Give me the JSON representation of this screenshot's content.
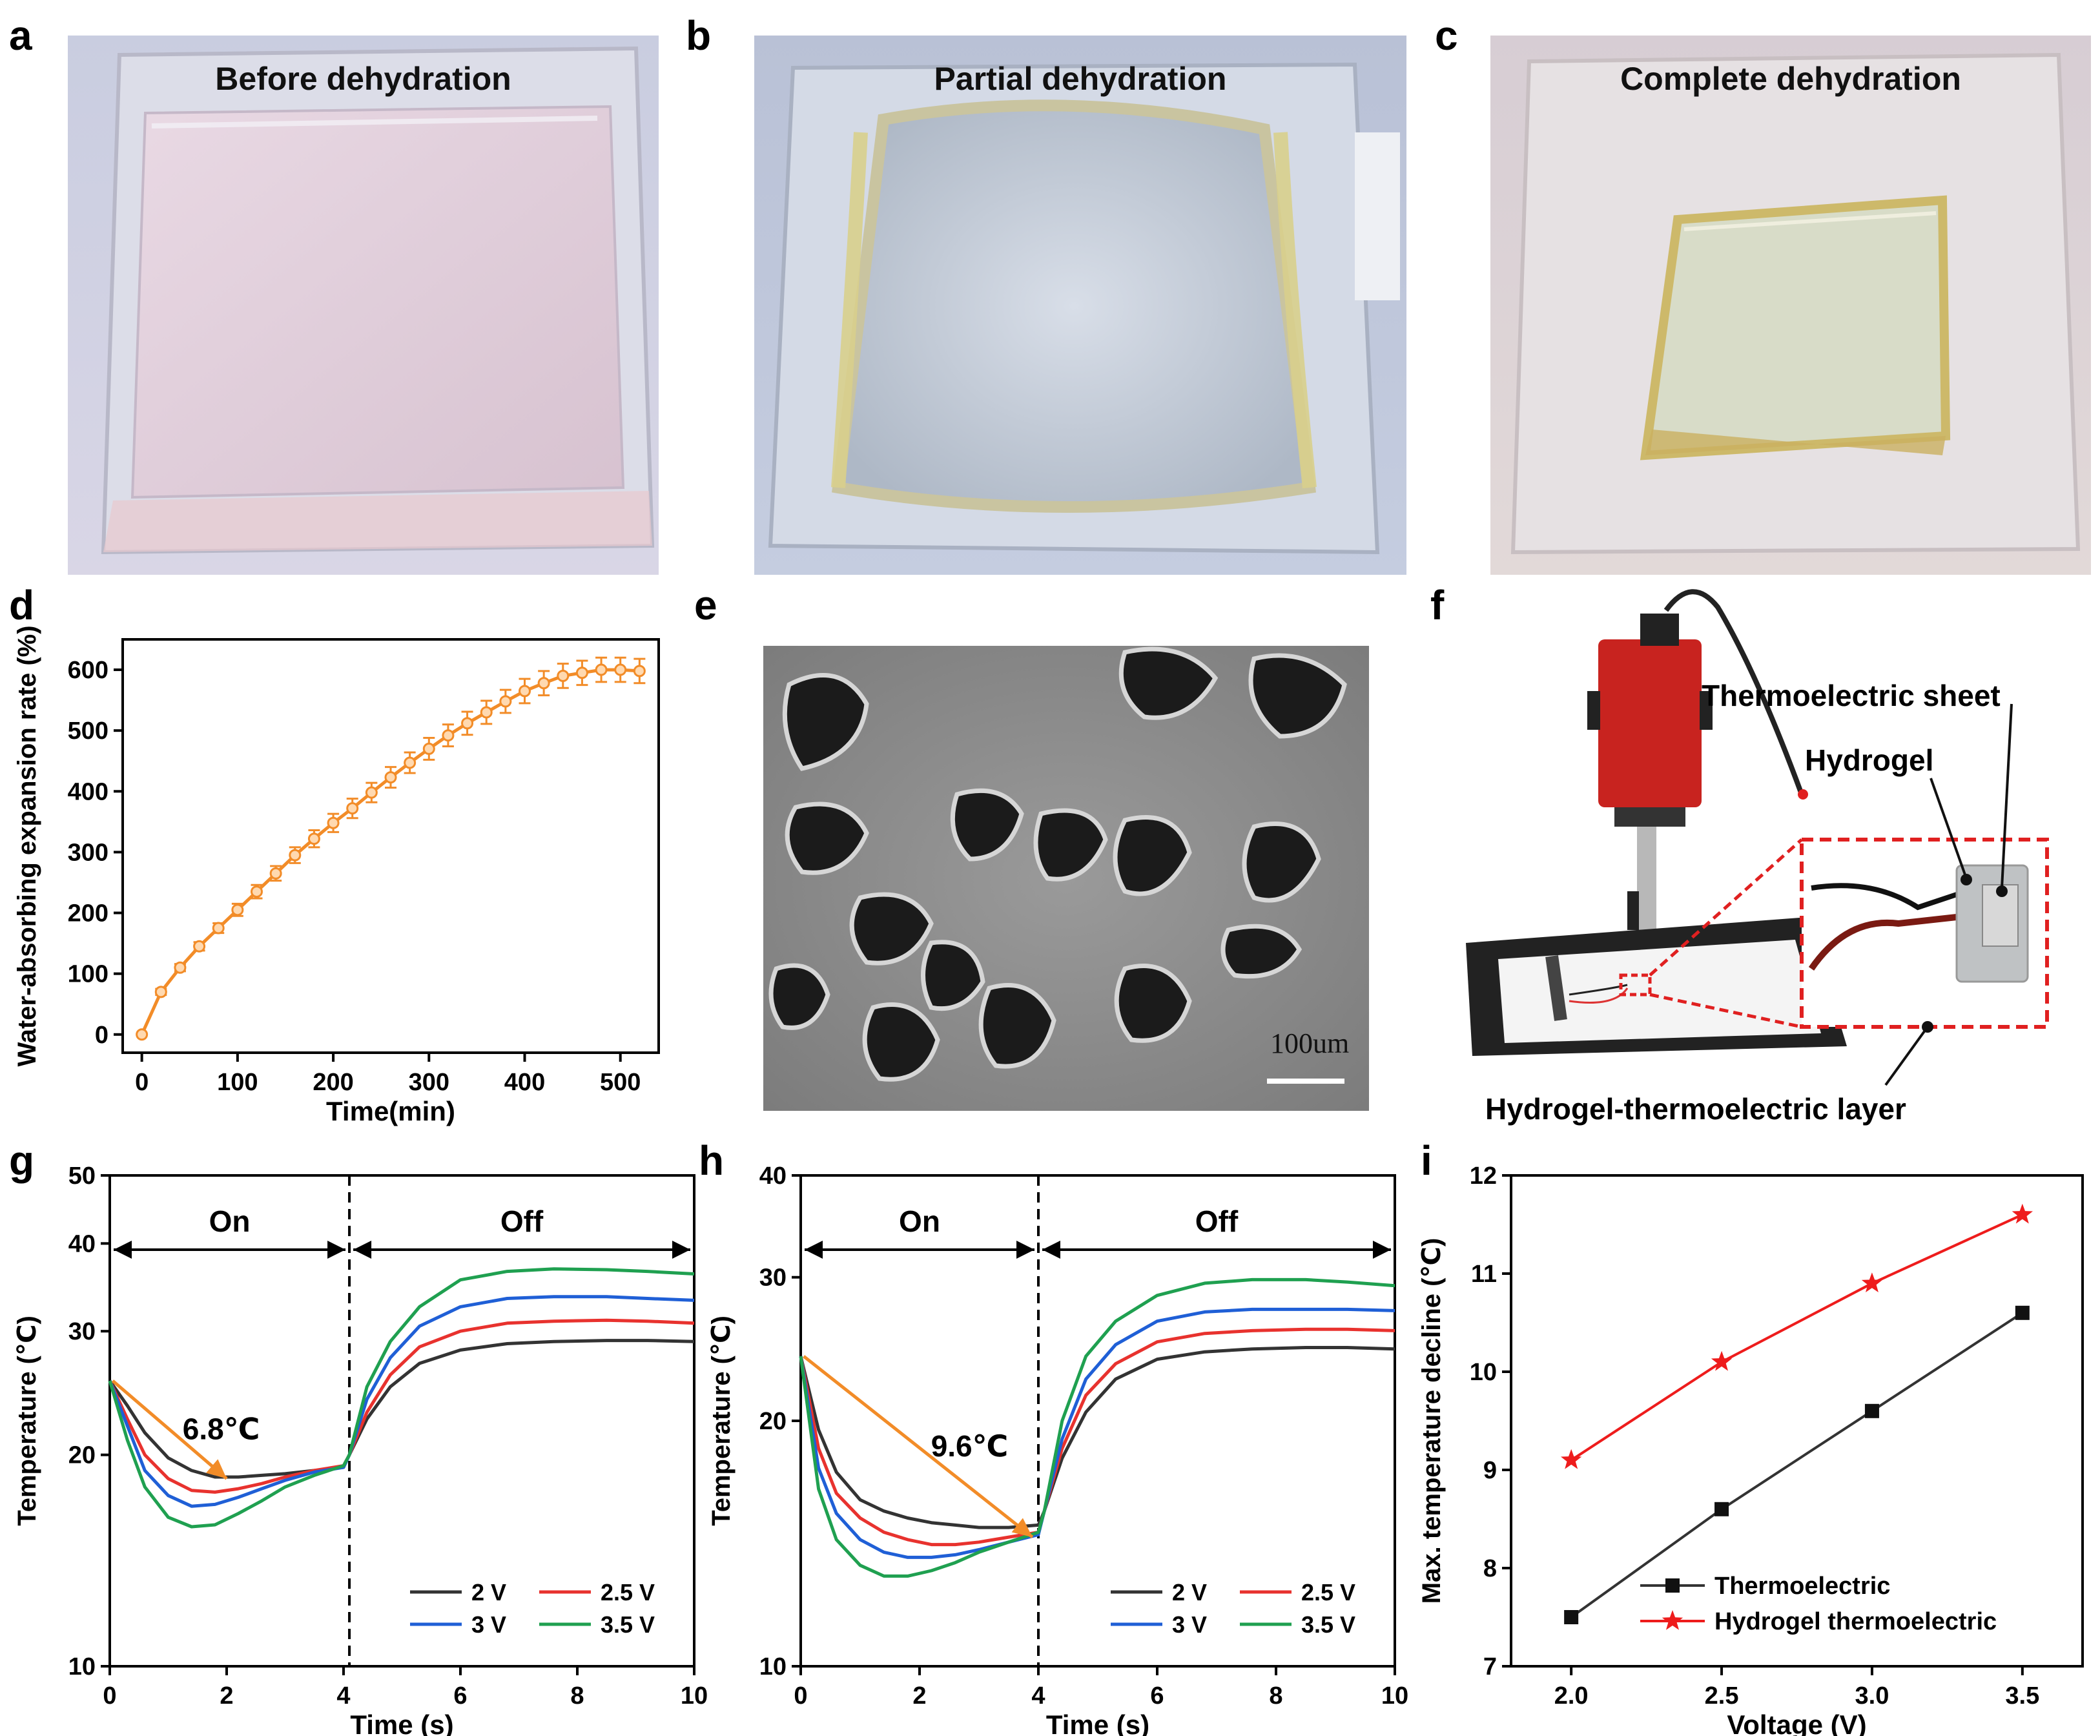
{
  "panels": {
    "a": {
      "letter": "a",
      "title": "Before dehydration"
    },
    "b": {
      "letter": "b",
      "title": "Partial dehydration"
    },
    "c": {
      "letter": "c",
      "title": "Complete dehydration"
    },
    "d": {
      "letter": "d"
    },
    "e": {
      "letter": "e",
      "scale_bar": "100um"
    },
    "f": {
      "letter": "f",
      "labels": {
        "thermoelectric_sheet": "Thermoelectric sheet",
        "hydrogel": "Hydrogel",
        "layer": "Hydrogel-thermoelectric layer"
      }
    },
    "g": {
      "letter": "g"
    },
    "h": {
      "letter": "h"
    },
    "i": {
      "letter": "i"
    }
  },
  "colors": {
    "orange": "#f28c28",
    "black": "#333333",
    "red": "#e8322e",
    "blue": "#1f5fd6",
    "green": "#1fa050",
    "red_star": "#ee1c1c"
  },
  "chart_data": [
    {
      "id": "d",
      "type": "line",
      "xlabel": "Time(min)",
      "ylabel": "Water-absorbing expansion rate (%)",
      "xlim": [
        -20,
        540
      ],
      "ylim": [
        -30,
        650
      ],
      "xticks": [
        0,
        100,
        200,
        300,
        400,
        500
      ],
      "yticks": [
        0,
        100,
        200,
        300,
        400,
        500,
        600
      ],
      "series": [
        {
          "color": "#f28c28",
          "x": [
            0,
            20,
            40,
            60,
            80,
            100,
            120,
            140,
            160,
            180,
            200,
            220,
            240,
            260,
            280,
            300,
            320,
            340,
            360,
            380,
            400,
            420,
            440,
            460,
            480,
            500,
            520
          ],
          "y": [
            0,
            70,
            110,
            145,
            175,
            205,
            235,
            265,
            295,
            322,
            348,
            372,
            398,
            423,
            447,
            470,
            492,
            512,
            530,
            548,
            565,
            578,
            590,
            595,
            600,
            600,
            598
          ],
          "err": [
            0,
            5,
            6,
            7,
            8,
            10,
            11,
            12,
            13,
            14,
            15,
            16,
            16,
            17,
            17,
            18,
            18,
            19,
            19,
            19,
            20,
            20,
            20,
            20,
            20,
            20,
            20
          ]
        }
      ]
    },
    {
      "id": "g",
      "type": "line",
      "xlabel": "Time (s)",
      "ylabel": "Temperature (℃)",
      "yscale": "log",
      "xlim": [
        0,
        10
      ],
      "ylim": [
        10,
        50
      ],
      "xticks": [
        0,
        2,
        4,
        6,
        8,
        10
      ],
      "yticks": [
        10,
        20,
        30,
        40,
        50
      ],
      "annotations": {
        "on": "On",
        "off": "Off",
        "delta": "6.8℃",
        "switch_x": 4.1,
        "arrow_from": [
          0.05,
          25.5
        ],
        "arrow_to": [
          2.0,
          18.5
        ]
      },
      "legend": [
        "2 V",
        "2.5 V",
        "3 V",
        "3.5 V"
      ],
      "series": [
        {
          "name": "2 V",
          "color": "#333333",
          "x": [
            0,
            0.3,
            0.6,
            1,
            1.4,
            1.8,
            2.2,
            2.6,
            3,
            3.5,
            4,
            4.1,
            4.4,
            4.8,
            5.3,
            6,
            6.8,
            7.6,
            8.5,
            9.2,
            10
          ],
          "y": [
            25.5,
            23.5,
            21.5,
            19.8,
            19.0,
            18.6,
            18.6,
            18.7,
            18.8,
            19.0,
            19.2,
            20.0,
            22.5,
            25,
            27,
            28.2,
            28.8,
            29,
            29.1,
            29.1,
            29.0
          ]
        },
        {
          "name": "2.5 V",
          "color": "#e8322e",
          "x": [
            0,
            0.3,
            0.6,
            1,
            1.4,
            1.8,
            2.2,
            2.6,
            3,
            3.5,
            4,
            4.1,
            4.4,
            4.8,
            5.3,
            6,
            6.8,
            7.6,
            8.5,
            9.2,
            10
          ],
          "y": [
            25.5,
            22.5,
            20.0,
            18.5,
            17.8,
            17.7,
            17.9,
            18.2,
            18.6,
            19.0,
            19.3,
            20.0,
            23.0,
            26,
            28.5,
            30,
            30.8,
            31,
            31.1,
            31.0,
            30.8
          ]
        },
        {
          "name": "3 V",
          "color": "#1f5fd6",
          "x": [
            0,
            0.3,
            0.6,
            1,
            1.4,
            1.8,
            2.2,
            2.6,
            3,
            3.5,
            4,
            4.1,
            4.4,
            4.8,
            5.3,
            6,
            6.8,
            7.6,
            8.5,
            9.2,
            10
          ],
          "y": [
            25.5,
            22.0,
            19.0,
            17.5,
            16.9,
            17.0,
            17.4,
            17.9,
            18.4,
            18.9,
            19.2,
            20.0,
            24,
            27.5,
            30.5,
            32.5,
            33.4,
            33.6,
            33.6,
            33.4,
            33.2
          ]
        },
        {
          "name": "3.5 V",
          "color": "#1fa050",
          "x": [
            0,
            0.3,
            0.6,
            1,
            1.4,
            1.8,
            2.2,
            2.6,
            3,
            3.5,
            4,
            4.1,
            4.4,
            4.8,
            5.3,
            6,
            6.8,
            7.6,
            8.5,
            9.2,
            10
          ],
          "y": [
            25.5,
            21.0,
            18.0,
            16.3,
            15.8,
            15.9,
            16.5,
            17.2,
            18.0,
            18.7,
            19.3,
            20.0,
            25,
            29,
            32.5,
            35.5,
            36.5,
            36.8,
            36.7,
            36.5,
            36.2
          ]
        }
      ]
    },
    {
      "id": "h",
      "type": "line",
      "xlabel": "Time (s)",
      "ylabel": "Temperature (℃)",
      "yscale": "log",
      "xlim": [
        0,
        10
      ],
      "ylim": [
        10,
        40
      ],
      "xticks": [
        0,
        2,
        4,
        6,
        8,
        10
      ],
      "yticks": [
        10,
        20,
        30,
        40
      ],
      "annotations": {
        "on": "On",
        "off": "Off",
        "delta": "9.6℃",
        "switch_x": 4.0,
        "arrow_from": [
          0.05,
          24.0
        ],
        "arrow_to": [
          3.9,
          14.4
        ]
      },
      "legend": [
        "2 V",
        "2.5 V",
        "3 V",
        "3.5 V"
      ],
      "series": [
        {
          "name": "2 V",
          "color": "#333333",
          "x": [
            0,
            0.3,
            0.6,
            1,
            1.4,
            1.8,
            2.2,
            2.6,
            3,
            3.5,
            4,
            4.1,
            4.4,
            4.8,
            5.3,
            6,
            6.8,
            7.6,
            8.5,
            9.2,
            10
          ],
          "y": [
            24,
            19.5,
            17.3,
            16.0,
            15.5,
            15.2,
            15.0,
            14.9,
            14.8,
            14.8,
            14.9,
            15.5,
            18,
            20.5,
            22.5,
            23.8,
            24.3,
            24.5,
            24.6,
            24.6,
            24.5
          ]
        },
        {
          "name": "2.5 V",
          "color": "#e8322e",
          "x": [
            0,
            0.3,
            0.6,
            1,
            1.4,
            1.8,
            2.2,
            2.6,
            3,
            3.5,
            4,
            4.1,
            4.4,
            4.8,
            5.3,
            6,
            6.8,
            7.6,
            8.5,
            9.2,
            10
          ],
          "y": [
            24,
            18.5,
            16.3,
            15.2,
            14.6,
            14.3,
            14.1,
            14.1,
            14.2,
            14.4,
            14.6,
            15.5,
            18.5,
            21.5,
            23.5,
            25,
            25.6,
            25.8,
            25.9,
            25.9,
            25.8
          ]
        },
        {
          "name": "3 V",
          "color": "#1f5fd6",
          "x": [
            0,
            0.3,
            0.6,
            1,
            1.4,
            1.8,
            2.2,
            2.6,
            3,
            3.5,
            4,
            4.1,
            4.4,
            4.8,
            5.3,
            6,
            6.8,
            7.6,
            8.5,
            9.2,
            10
          ],
          "y": [
            24,
            17.5,
            15.4,
            14.3,
            13.8,
            13.6,
            13.6,
            13.7,
            13.9,
            14.2,
            14.5,
            15.5,
            19,
            22.5,
            24.8,
            26.5,
            27.2,
            27.4,
            27.4,
            27.4,
            27.3
          ]
        },
        {
          "name": "3.5 V",
          "color": "#1fa050",
          "x": [
            0,
            0.3,
            0.6,
            1,
            1.4,
            1.8,
            2.2,
            2.6,
            3,
            3.5,
            4,
            4.1,
            4.4,
            4.8,
            5.3,
            6,
            6.8,
            7.6,
            8.5,
            9.2,
            10
          ],
          "y": [
            24,
            16.5,
            14.3,
            13.3,
            12.9,
            12.9,
            13.1,
            13.4,
            13.8,
            14.2,
            14.6,
            15.5,
            20,
            24,
            26.5,
            28.5,
            29.5,
            29.8,
            29.8,
            29.6,
            29.3
          ]
        }
      ]
    },
    {
      "id": "i",
      "type": "line",
      "xlabel": "Voltage (V)",
      "ylabel": "Max. temperature decline (℃)",
      "xlim": [
        1.8,
        3.7
      ],
      "ylim": [
        7,
        12
      ],
      "xticks": [
        2.0,
        2.5,
        3.0,
        3.5
      ],
      "xtick_labels": [
        "2.0",
        "2.5",
        "3.0",
        "3.5"
      ],
      "yticks": [
        7,
        8,
        9,
        10,
        11,
        12
      ],
      "series": [
        {
          "name": "Thermoelectric",
          "color": "#333333",
          "marker": "square",
          "x": [
            2.0,
            2.5,
            3.0,
            3.5
          ],
          "y": [
            7.5,
            8.6,
            9.6,
            10.6
          ]
        },
        {
          "name": "Hydrogel thermoelectric",
          "color": "#ee1c1c",
          "marker": "star",
          "x": [
            2.0,
            2.5,
            3.0,
            3.5
          ],
          "y": [
            9.1,
            10.1,
            10.9,
            11.6
          ]
        }
      ]
    }
  ]
}
